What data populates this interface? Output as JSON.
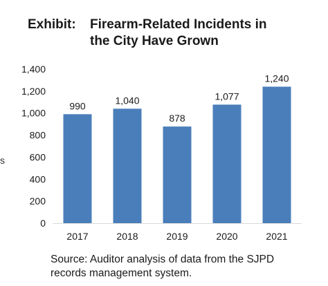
{
  "title": {
    "label": "Exhibit:",
    "line1": "Firearm-Related Incidents in",
    "line2": "the City Have Grown"
  },
  "source": {
    "line1": "Source: Auditor analysis of data from the SJPD",
    "line2": "records management system."
  },
  "margin_mark": "s",
  "colors": {
    "bar": "#4a7ebb",
    "gridline": "#d9d9d9",
    "text": "#1a1a1a"
  },
  "chart_data": {
    "type": "bar",
    "title": "Firearm-Related Incidents in the City Have Grown",
    "categories": [
      "2017",
      "2018",
      "2019",
      "2020",
      "2021"
    ],
    "values": [
      990,
      1040,
      878,
      1077,
      1240
    ],
    "data_labels": [
      "990",
      "1,040",
      "878",
      "1,077",
      "1,240"
    ],
    "ylim": [
      0,
      1400
    ],
    "yticks": [
      0,
      200,
      400,
      600,
      800,
      1000,
      1200,
      1400
    ],
    "ytick_labels": [
      "0",
      "200",
      "400",
      "600",
      "800",
      "1,000",
      "1,200",
      "1,400"
    ],
    "xlabel": "",
    "ylabel": "",
    "grid": false,
    "legend": "none"
  }
}
